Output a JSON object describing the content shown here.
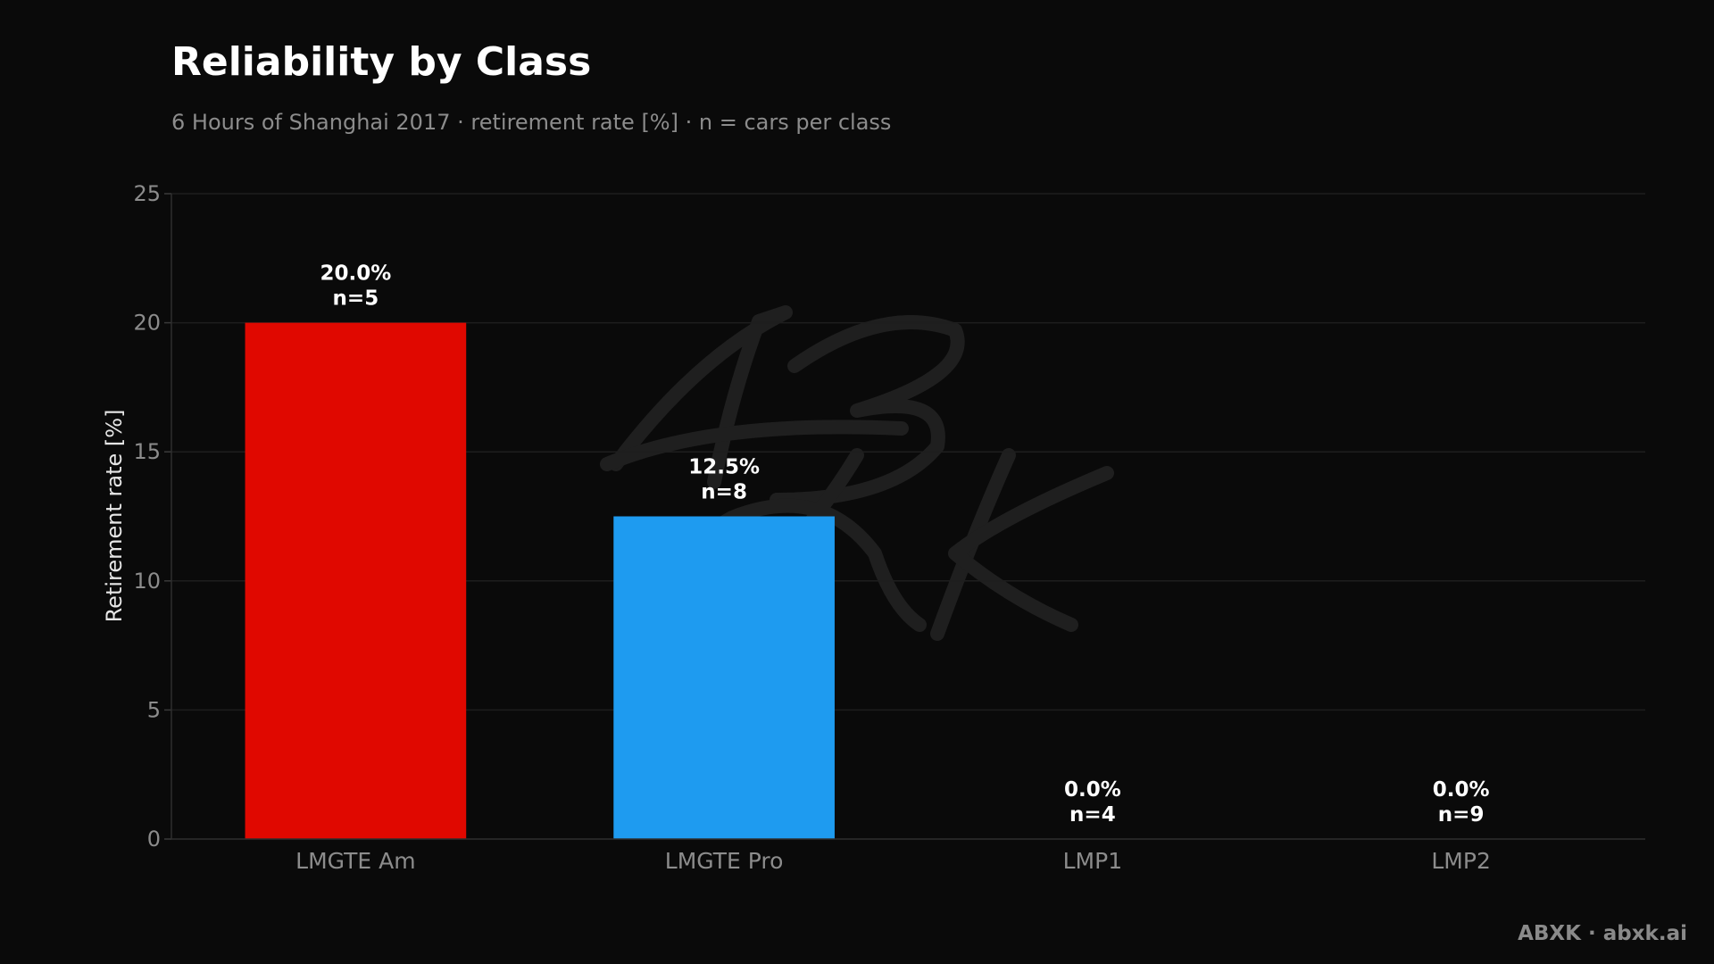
{
  "chart_data": {
    "type": "bar",
    "title": "Reliability by Class",
    "subtitle": "6 Hours of Shanghai 2017 · retirement rate [%] · n = cars per class",
    "ylabel": "Retirement rate [%]",
    "xlabel": "",
    "ylim": [
      0,
      25
    ],
    "yticks": [
      0,
      5,
      10,
      15,
      20,
      25
    ],
    "categories": [
      "LMGTE Am",
      "LMGTE Pro",
      "LMP1",
      "LMP2"
    ],
    "values": [
      20.0,
      12.5,
      0.0,
      0.0
    ],
    "value_labels": [
      "20.0%",
      "12.5%",
      "0.0%",
      "0.0%"
    ],
    "n_labels": [
      "n=5",
      "n=8",
      "n=4",
      "n=9"
    ],
    "colors": [
      "#e00800",
      "#1e9bf0",
      "#e00800",
      "#1e9bf0"
    ],
    "grid": true,
    "legend": "none"
  },
  "footer": "ABXK · abxk.ai"
}
